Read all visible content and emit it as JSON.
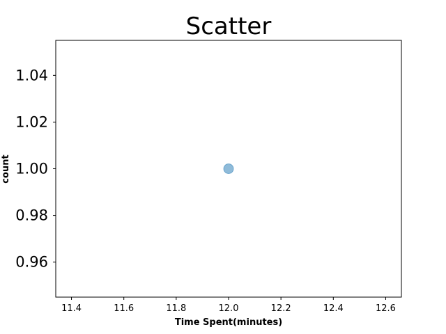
{
  "chart_data": {
    "type": "scatter",
    "title": "Scatter",
    "xlabel": "Time Spent(minutes)",
    "ylabel": "count",
    "xlim": [
      11.34,
      12.66
    ],
    "ylim": [
      0.945,
      1.055
    ],
    "xticks": [
      "11.4",
      "11.6",
      "11.8",
      "12.0",
      "12.2",
      "12.4",
      "12.6"
    ],
    "yticks": [
      "0.96",
      "0.98",
      "1.00",
      "1.02",
      "1.04"
    ],
    "grid": false,
    "legend": "none",
    "series": [
      {
        "color": "#1f77b4",
        "points": [
          {
            "x": 12.0,
            "y": 1.0
          }
        ]
      }
    ]
  }
}
